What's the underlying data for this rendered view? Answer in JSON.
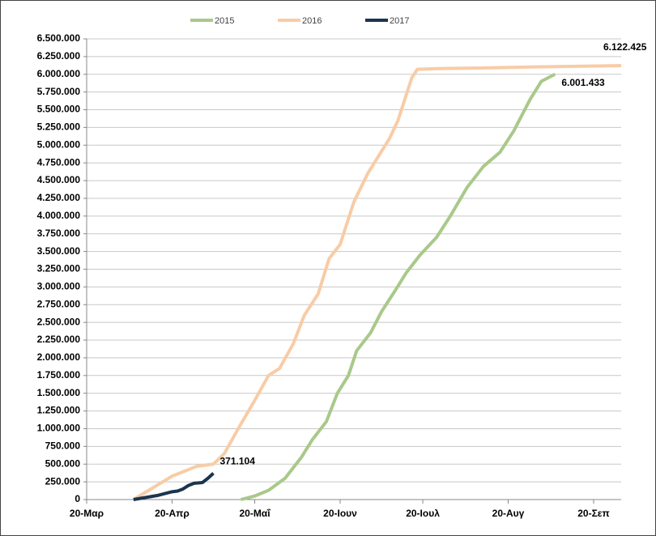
{
  "chart_data": {
    "type": "line",
    "xticks": [
      {
        "value": 0,
        "label": "20-Μαρ"
      },
      {
        "value": 31,
        "label": "20-Απρ"
      },
      {
        "value": 61,
        "label": "20-Μαΐ"
      },
      {
        "value": 92,
        "label": "20-Ιουν"
      },
      {
        "value": 122,
        "label": "20-Ιουλ"
      },
      {
        "value": 153,
        "label": "20-Αυγ"
      },
      {
        "value": 184,
        "label": "20-Σεπ"
      }
    ],
    "xlim": [
      0,
      194
    ],
    "ylim": [
      0,
      6500000
    ],
    "yticks": [
      0,
      {
        "value": 250000,
        "label": "250.000"
      },
      {
        "value": 500000,
        "label": "500.000"
      },
      {
        "value": 750000,
        "label": "750.000"
      },
      {
        "value": 1000000,
        "label": "1.000.000"
      },
      {
        "value": 1250000,
        "label": "1.250.000"
      },
      {
        "value": 1500000,
        "label": "1.500.000"
      },
      {
        "value": 1750000,
        "label": "1.750.000"
      },
      {
        "value": 2000000,
        "label": "2.000.000"
      },
      {
        "value": 2250000,
        "label": "2.250.000"
      },
      {
        "value": 2500000,
        "label": "2.500.000"
      },
      {
        "value": 2750000,
        "label": "2.750.000"
      },
      {
        "value": 3000000,
        "label": "3.000.000"
      },
      {
        "value": 3250000,
        "label": "3.250.000"
      },
      {
        "value": 3500000,
        "label": "3.500.000"
      },
      {
        "value": 3750000,
        "label": "3.750.000"
      },
      {
        "value": 4000000,
        "label": "4.000.000"
      },
      {
        "value": 4250000,
        "label": "4.250.000"
      },
      {
        "value": 4500000,
        "label": "4.500.000"
      },
      {
        "value": 4750000,
        "label": "4.750.000"
      },
      {
        "value": 5000000,
        "label": "5.000.000"
      },
      {
        "value": 5250000,
        "label": "5.250.000"
      },
      {
        "value": 5500000,
        "label": "5.500.000"
      },
      {
        "value": 5750000,
        "label": "5.750.000"
      },
      {
        "value": 6000000,
        "label": "6.000.000"
      },
      {
        "value": 6250000,
        "label": "6.250.000"
      },
      {
        "value": 6500000,
        "label": "6.500.000"
      }
    ],
    "grid": true,
    "legend": "top",
    "series": [
      {
        "name": "2015",
        "color": "#a9c98a",
        "x": [
          56,
          61,
          66,
          72,
          78,
          82,
          87,
          91,
          95,
          98,
          103,
          107,
          112,
          116,
          121,
          127,
          132,
          138,
          144,
          150,
          155,
          161,
          165,
          170
        ],
        "values": [
          0,
          50000,
          130000,
          300000,
          600000,
          850000,
          1100000,
          1500000,
          1750000,
          2100000,
          2350000,
          2650000,
          2950000,
          3200000,
          3450000,
          3700000,
          4000000,
          4400000,
          4700000,
          4900000,
          5200000,
          5650000,
          5900000,
          6001433
        ],
        "value_labels": [
          null,
          null,
          null,
          null,
          null,
          null,
          null,
          null,
          null,
          null,
          null,
          null,
          null,
          null,
          null,
          null,
          null,
          null,
          null,
          null,
          null,
          null,
          null,
          "6.001.433"
        ]
      },
      {
        "name": "2016",
        "color": "#f8cca6",
        "x": [
          17,
          31,
          40,
          46,
          50,
          55,
          61,
          66,
          70,
          75,
          79,
          84,
          88,
          92,
          97,
          102,
          106,
          110,
          113,
          118,
          120,
          127,
          145,
          163,
          194
        ],
        "values": [
          0,
          330000,
          470000,
          500000,
          650000,
          1000000,
          1400000,
          1750000,
          1850000,
          2200000,
          2600000,
          2900000,
          3400000,
          3600000,
          4200000,
          4600000,
          4850000,
          5100000,
          5350000,
          5950000,
          6070000,
          6080000,
          6090000,
          6105000,
          6122425
        ],
        "value_labels": [
          null,
          null,
          null,
          null,
          null,
          null,
          null,
          null,
          null,
          null,
          null,
          null,
          null,
          null,
          null,
          null,
          null,
          null,
          null,
          null,
          null,
          null,
          null,
          null,
          "6.122.425"
        ]
      },
      {
        "name": "2017",
        "color": "#1b3550",
        "x": [
          17,
          20,
          23,
          26,
          29,
          31,
          33,
          35,
          37,
          39,
          42,
          44,
          46
        ],
        "values": [
          0,
          20000,
          40000,
          60000,
          90000,
          110000,
          120000,
          150000,
          200000,
          230000,
          240000,
          300000,
          371104
        ],
        "value_labels": [
          null,
          null,
          null,
          null,
          null,
          null,
          null,
          null,
          null,
          null,
          null,
          null,
          "371.104"
        ]
      }
    ]
  }
}
